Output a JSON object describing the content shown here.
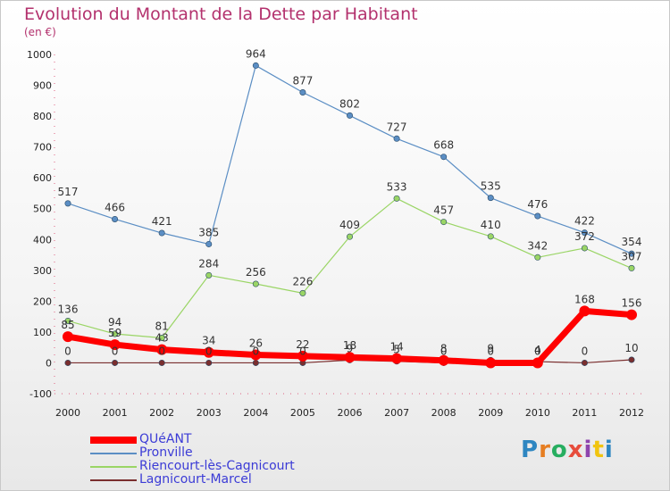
{
  "header": {
    "title": "Evolution du Montant de la Dette par Habitant",
    "subtitle": "(en €)"
  },
  "brand": {
    "letters": [
      "P",
      "r",
      "o",
      "x",
      "i",
      "t",
      "i"
    ],
    "colors": [
      "#2e86c1",
      "#e67e22",
      "#27ae60",
      "#e74c3c",
      "#8e44ad",
      "#f1c40f",
      "#2e86c1"
    ]
  },
  "chart_data": {
    "type": "line",
    "title": "Evolution du Montant de la Dette par Habitant",
    "ylabel": "(en €)",
    "xlabel": "",
    "ylim": [
      -100,
      1000
    ],
    "yticks": [
      -100,
      0,
      100,
      200,
      300,
      400,
      500,
      600,
      700,
      800,
      900,
      1000
    ],
    "grid": false,
    "legend_position": "bottom-left",
    "categories": [
      "2000",
      "2001",
      "2002",
      "2003",
      "2004",
      "2005",
      "2006",
      "2007",
      "2008",
      "2009",
      "2010",
      "2011",
      "2012"
    ],
    "series": [
      {
        "name": "Pronville",
        "color": "#5b8ec4",
        "values": [
          517,
          466,
          421,
          385,
          964,
          877,
          802,
          727,
          668,
          535,
          476,
          422,
          354
        ]
      },
      {
        "name": "Riencourt-lès-Cagnicourt",
        "color": "#9ad565",
        "values": [
          136,
          94,
          81,
          284,
          256,
          226,
          409,
          533,
          457,
          410,
          342,
          372,
          307
        ]
      },
      {
        "name": "Lagnicourt-Marcel",
        "color": "#7a2e2e",
        "values": [
          0,
          0,
          0,
          0,
          0,
          0,
          9,
          5,
          0,
          9,
          4,
          0,
          10
        ]
      },
      {
        "name": "QUéANT",
        "color": "#ff0000",
        "values": [
          85,
          59,
          43,
          34,
          26,
          22,
          18,
          14,
          8,
          0,
          0,
          168,
          156
        ]
      }
    ],
    "legend_order": [
      "QUéANT",
      "Pronville",
      "Riencourt-lès-Cagnicourt",
      "Lagnicourt-Marcel"
    ]
  }
}
